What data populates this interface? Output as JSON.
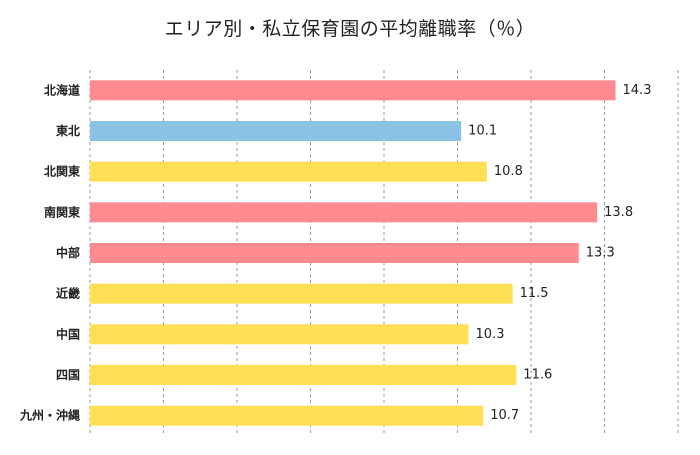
{
  "chart_data": {
    "type": "bar",
    "orientation": "horizontal",
    "title": "エリア別・私立保育園の平均離職率（％）",
    "categories": [
      "北海道",
      "東北",
      "北関東",
      "南関東",
      "中部",
      "近畿",
      "中国",
      "四国",
      "九州・沖縄"
    ],
    "values": [
      14.3,
      10.1,
      10.8,
      13.8,
      13.3,
      11.5,
      10.3,
      11.6,
      10.7
    ],
    "value_labels": [
      "14.3",
      "10.1",
      "10.8",
      "13.8",
      "13.3",
      "11.5",
      "10.3",
      "11.6",
      "10.7"
    ],
    "bar_colors": [
      "#FF8A8F",
      "#8AC3E3",
      "#FFE055",
      "#FF8A8F",
      "#FF8A8F",
      "#FFE055",
      "#FFE055",
      "#FFE055",
      "#FFE055"
    ],
    "xlim": [
      0,
      16
    ],
    "xgrid_step": 2,
    "grid": true,
    "grid_style": "dashed-vertical",
    "xlabel": "",
    "ylabel": "",
    "legend": "none"
  }
}
